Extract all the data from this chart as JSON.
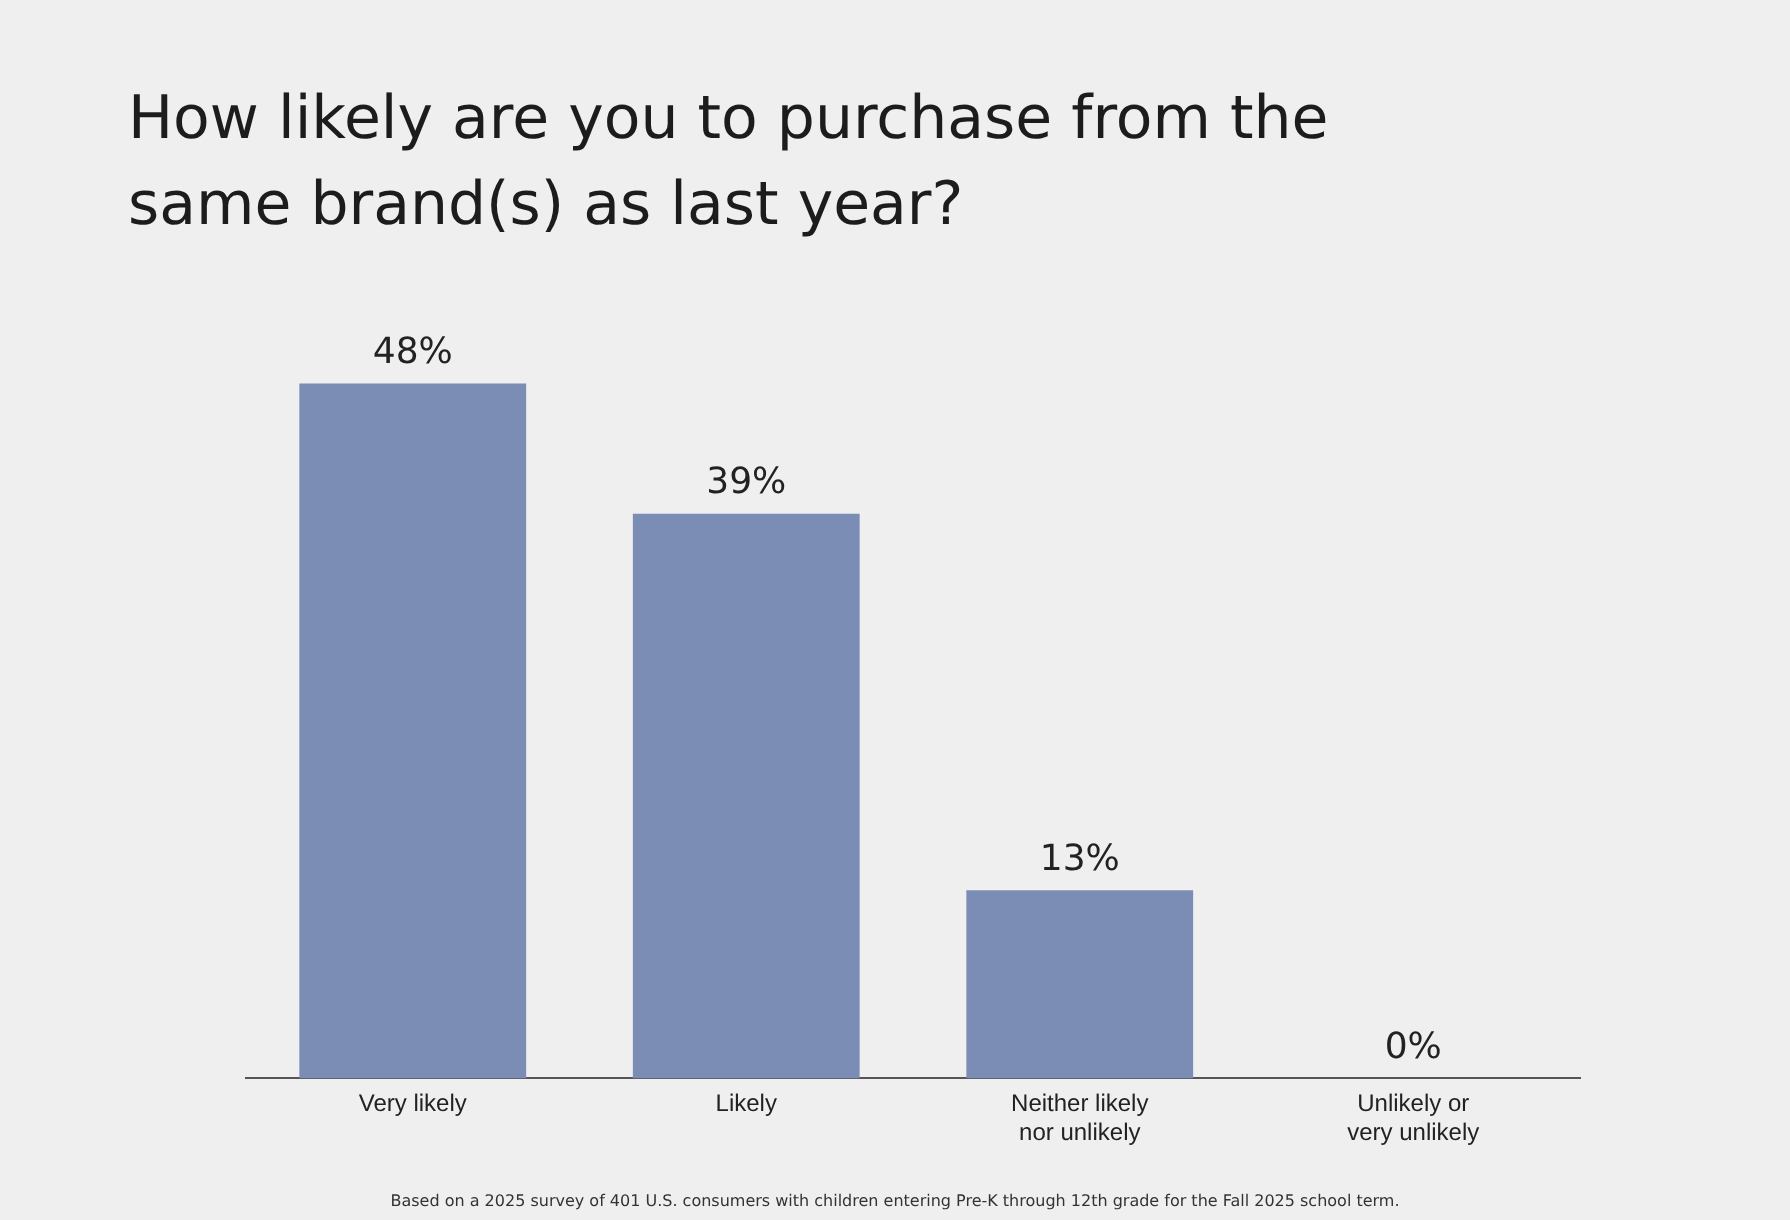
{
  "chart_data": {
    "type": "bar",
    "title": "How likely are you to purchase from the same brand(s) as last year?",
    "categories": [
      "Very likely",
      "Likely",
      "Neither likely nor unlikely",
      "Unlikely or very unlikely"
    ],
    "values": [
      48,
      39,
      13,
      0
    ],
    "value_labels": [
      "48%",
      "39%",
      "13%",
      "0%"
    ],
    "color": "#7b8db5",
    "legend": false,
    "annotations": [
      "Based on a 2025 survey of 401 U.S. consumers with children entering Pre-K through 12th grade for the Fall 2025 school term."
    ]
  }
}
